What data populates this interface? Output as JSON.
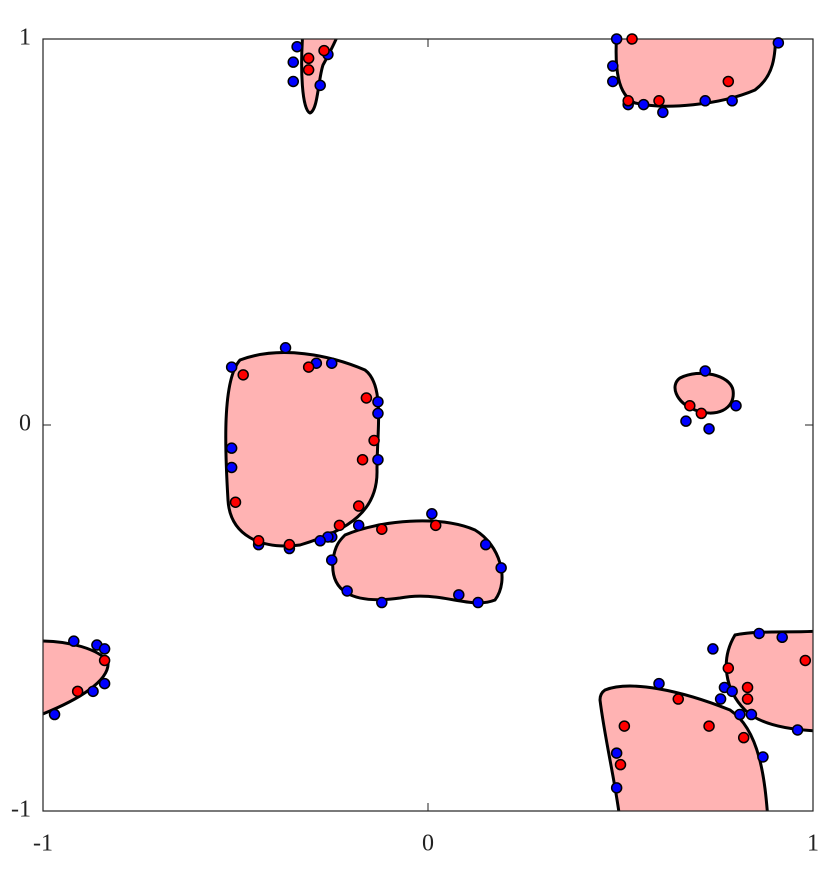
{
  "chart_data": {
    "type": "scatter",
    "xlim": [
      -1,
      1
    ],
    "ylim": [
      -1,
      1
    ],
    "xticks": [
      -1,
      0,
      1
    ],
    "yticks": [
      -1,
      0,
      1
    ],
    "series": [
      {
        "color": "#0000ff",
        "x": [
          -0.34,
          -0.35,
          -0.35,
          -0.26,
          -0.28,
          0.49,
          0.48,
          0.48,
          0.52,
          0.56,
          0.61,
          0.72,
          0.79,
          0.91,
          -0.37,
          -0.51,
          -0.29,
          -0.25,
          -0.13,
          -0.13,
          -0.51,
          -0.51,
          -0.13,
          -0.18,
          -0.25,
          -0.26,
          -0.28,
          -0.44,
          -0.36,
          0.01,
          0.15,
          0.19,
          0.13,
          0.08,
          -0.12,
          -0.21,
          -0.25,
          0.72,
          0.8,
          0.67,
          0.73,
          -0.92,
          -0.86,
          -0.84,
          -0.84,
          -0.87,
          -0.97,
          0.74,
          0.86,
          0.92,
          0.96,
          0.77,
          0.79,
          0.76,
          0.81,
          0.84,
          0.6,
          0.49,
          0.49,
          0.87
        ],
        "values": [
          0.98,
          0.94,
          0.89,
          0.96,
          0.88,
          1.0,
          0.93,
          0.89,
          0.83,
          0.83,
          0.81,
          0.84,
          0.84,
          0.99,
          0.2,
          0.15,
          0.16,
          0.16,
          0.06,
          0.03,
          -0.06,
          -0.11,
          -0.09,
          -0.26,
          -0.29,
          -0.29,
          -0.3,
          -0.31,
          -0.32,
          -0.23,
          -0.31,
          -0.37,
          -0.46,
          -0.44,
          -0.46,
          -0.43,
          -0.35,
          0.14,
          0.05,
          0.01,
          -0.01,
          -0.56,
          -0.57,
          -0.58,
          -0.67,
          -0.69,
          -0.75,
          -0.58,
          -0.54,
          -0.55,
          -0.79,
          -0.68,
          -0.69,
          -0.71,
          -0.75,
          -0.75,
          -0.67,
          -0.85,
          -0.94,
          -0.86
        ]
      },
      {
        "color": "#ff0000",
        "x": [
          -0.31,
          -0.31,
          -0.27,
          0.53,
          0.52,
          0.6,
          0.78,
          -0.48,
          -0.31,
          -0.16,
          -0.14,
          -0.17,
          -0.5,
          -0.18,
          -0.23,
          -0.44,
          -0.36,
          -0.12,
          0.02,
          0.68,
          0.71,
          -0.84,
          -0.91,
          0.98,
          0.78,
          0.83,
          0.83,
          0.65,
          0.73,
          0.82,
          0.51,
          0.5
        ],
        "values": [
          0.95,
          0.92,
          0.97,
          1.0,
          0.84,
          0.84,
          0.89,
          0.13,
          0.15,
          0.07,
          -0.04,
          -0.09,
          -0.2,
          -0.21,
          -0.26,
          -0.3,
          -0.31,
          -0.27,
          -0.26,
          0.05,
          0.03,
          -0.61,
          -0.69,
          -0.61,
          -0.63,
          -0.68,
          -0.71,
          -0.71,
          -0.78,
          -0.81,
          -0.78,
          -0.88
        ]
      }
    ]
  }
}
